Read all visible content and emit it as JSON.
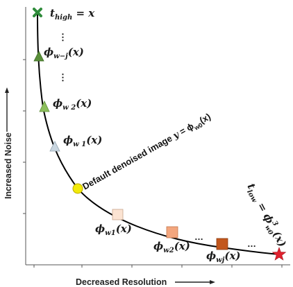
{
  "axes": {
    "x_title": "Decreased Resolution",
    "y_title": "Increased Noise"
  },
  "labels": {
    "t_high": "t",
    "t_high_sub": "high",
    "t_high_eq": " = x",
    "phi_wj_top": "ϕ",
    "phi_wj_top_sub": "w−j",
    "phi_wj_top_arg": "(x)",
    "phi_w2_top": "ϕ",
    "phi_w2_top_sub": "w  2",
    "phi_w2_top_arg": "(x)",
    "phi_w1_top": "ϕ",
    "phi_w1_top_sub": "w  1",
    "phi_w1_top_arg": "(x)",
    "default_label": "Default denoised image ",
    "default_ybar": "y",
    "default_eq": " = ϕ",
    "default_sub": "w0",
    "default_arg": "(x)",
    "phi_w1_bottom": "ϕ",
    "phi_w1_bottom_sub": "w1",
    "phi_w1_bottom_arg": "(x)",
    "phi_w2_bottom": "ϕ",
    "phi_w2_bottom_sub": "w2",
    "phi_w2_bottom_arg": "(x)",
    "phi_wj_bottom": "ϕ",
    "phi_wj_bottom_sub": "wj",
    "phi_wj_bottom_arg": "(x)",
    "t_low": "t",
    "t_low_sub": "low",
    "t_low_eq": " = ϕ",
    "t_low_sup": "3",
    "t_low_sub2": "w0",
    "t_low_arg": "(x)",
    "dots_vertical": "⋮",
    "dots_horizontal": "…"
  },
  "colors": {
    "start_marker": "#2e8b3a",
    "triangle_dark": "#5a8f3a",
    "triangle_mid": "#8dbf5c",
    "triangle_light": "#c9d6e0",
    "default_marker": "#f2ea0a",
    "square_light": "#fbe3d2",
    "square_mid": "#f3a67e",
    "square_dark": "#c2571d",
    "end_marker": "#e0212e"
  }
}
